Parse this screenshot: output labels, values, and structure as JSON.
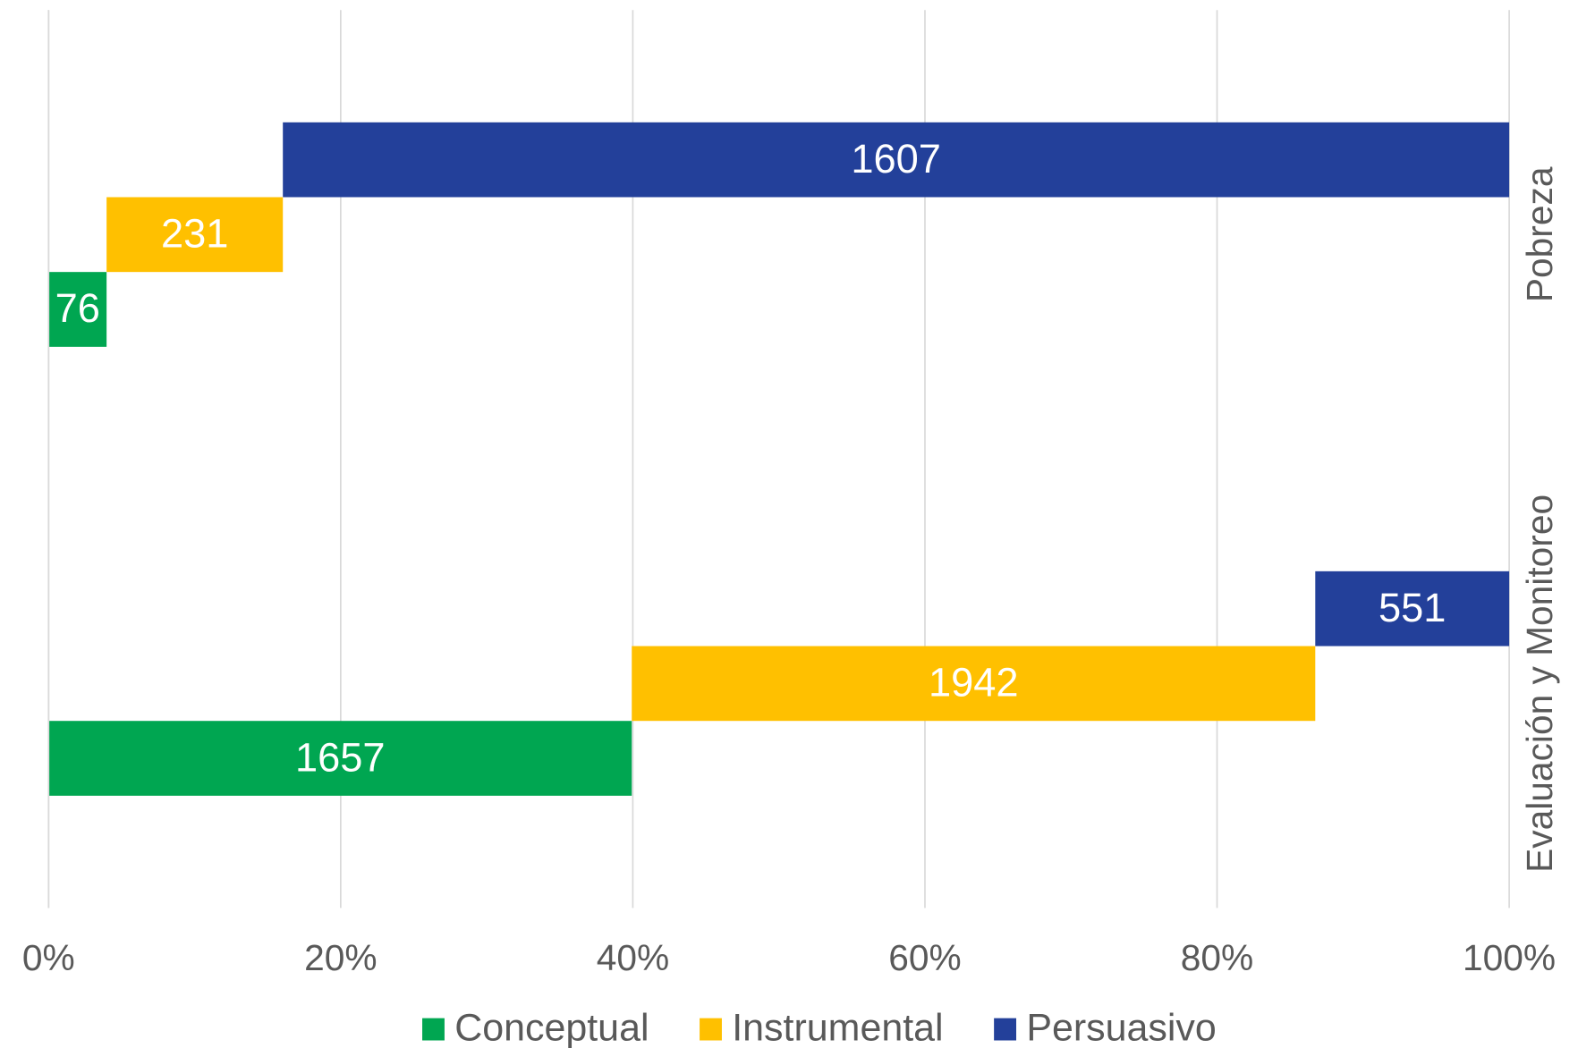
{
  "chart_data": {
    "type": "bar100_horizontal_staggered",
    "categories": [
      "Pobreza",
      "Evaluación y Monitoreo"
    ],
    "series": [
      {
        "name": "Conceptual",
        "color": "#00a651",
        "values": [
          76,
          1657
        ]
      },
      {
        "name": "Instrumental",
        "color": "#ffc000",
        "values": [
          231,
          1942
        ]
      },
      {
        "name": "Persuasivo",
        "color": "#23409a",
        "values": [
          1607,
          551
        ]
      }
    ],
    "xlim": [
      0,
      100
    ],
    "xticks": [
      {
        "value": 0,
        "label": "0%"
      },
      {
        "value": 20,
        "label": "20%"
      },
      {
        "value": 40,
        "label": "40%"
      },
      {
        "value": 60,
        "label": "60%"
      },
      {
        "value": 80,
        "label": "80%"
      },
      {
        "value": 100,
        "label": "100%"
      }
    ],
    "grid": true,
    "legend": "bottom"
  }
}
